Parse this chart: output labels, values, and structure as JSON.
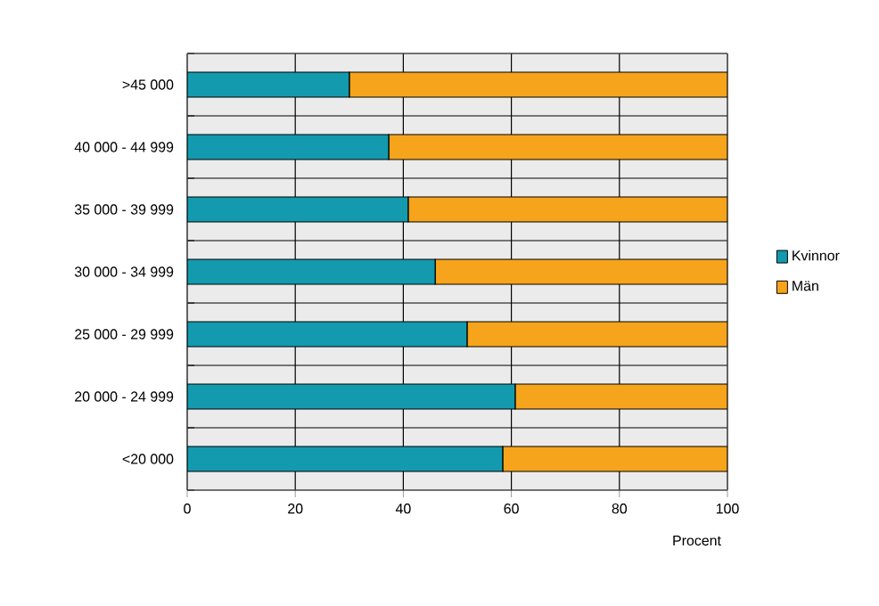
{
  "chart_data": {
    "type": "bar",
    "orientation": "horizontal",
    "stacked": true,
    "categories": [
      ">45 000",
      "40 000 - 44 999",
      "35 000 - 39 999",
      "30 000 - 34 999",
      "25 000 - 29 999",
      "20 000 - 24 999",
      "<20 000"
    ],
    "series": [
      {
        "name": "Kvinnor",
        "color": "#139aae",
        "values": [
          30,
          37.3,
          40.9,
          45.9,
          51.8,
          60.7,
          58.4
        ]
      },
      {
        "name": "Män",
        "color": "#f5a41c",
        "values": [
          70,
          62.7,
          59.1,
          54.1,
          48.2,
          39.3,
          41.6
        ]
      }
    ],
    "xlabel": "Procent",
    "xlim": [
      0,
      100
    ],
    "xticks": [
      0,
      20,
      40,
      60,
      80,
      100
    ],
    "grid": true,
    "legend": "right"
  }
}
